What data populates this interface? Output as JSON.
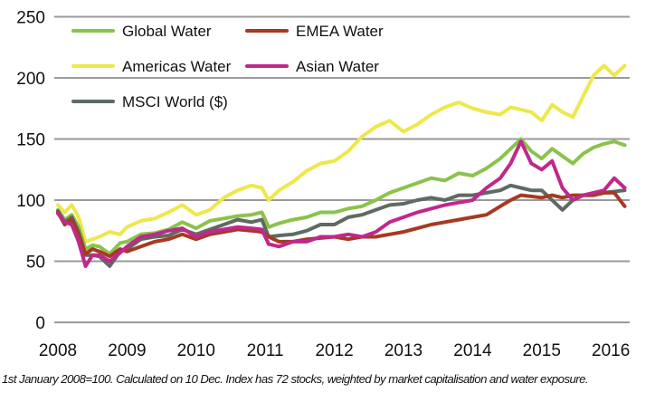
{
  "chart_data": {
    "type": "line",
    "title": "",
    "xlabel": "",
    "ylabel": "",
    "ylim": [
      0,
      250
    ],
    "xlim": [
      2008,
      2016.25
    ],
    "yticks": [
      0,
      50,
      100,
      150,
      200,
      250
    ],
    "xticks": [
      "2008",
      "2009",
      "2010",
      "2011",
      "2012",
      "2013",
      "2014",
      "2015",
      "2016"
    ],
    "grid": true,
    "legend_position": "top-left, inside plot",
    "x": [
      2008.0,
      2008.1,
      2008.2,
      2008.3,
      2008.4,
      2008.5,
      2008.6,
      2008.75,
      2008.9,
      2009.0,
      2009.2,
      2009.4,
      2009.6,
      2009.8,
      2010.0,
      2010.2,
      2010.4,
      2010.6,
      2010.8,
      2010.95,
      2011.05,
      2011.2,
      2011.4,
      2011.6,
      2011.8,
      2012.0,
      2012.2,
      2012.4,
      2012.6,
      2012.8,
      2013.0,
      2013.2,
      2013.4,
      2013.6,
      2013.8,
      2014.0,
      2014.2,
      2014.4,
      2014.55,
      2014.7,
      2014.85,
      2015.0,
      2015.15,
      2015.3,
      2015.45,
      2015.6,
      2015.75,
      2015.9,
      2016.05,
      2016.2
    ],
    "series": [
      {
        "name": "Global Water",
        "color": "#8BC34A",
        "values": [
          92,
          84,
          88,
          78,
          60,
          63,
          62,
          56,
          65,
          66,
          72,
          73,
          76,
          82,
          77,
          83,
          85,
          87,
          88,
          90,
          78,
          81,
          84,
          86,
          90,
          90,
          93,
          95,
          100,
          106,
          110,
          114,
          118,
          116,
          122,
          120,
          126,
          134,
          142,
          150,
          140,
          134,
          142,
          136,
          130,
          138,
          143,
          146,
          148,
          145
        ]
      },
      {
        "name": "Americas Water",
        "color": "#EDE84B",
        "values": [
          96,
          90,
          96,
          86,
          66,
          68,
          70,
          74,
          72,
          78,
          83,
          85,
          90,
          96,
          88,
          92,
          102,
          108,
          112,
          110,
          100,
          108,
          115,
          124,
          130,
          132,
          140,
          152,
          160,
          165,
          156,
          162,
          170,
          176,
          180,
          175,
          172,
          170,
          176,
          174,
          172,
          165,
          178,
          172,
          168,
          185,
          202,
          210,
          202,
          210
        ]
      },
      {
        "name": "MSCI World ($)",
        "color": "#5E6A62",
        "values": [
          91,
          82,
          86,
          74,
          55,
          55,
          54,
          46,
          58,
          60,
          68,
          70,
          71,
          76,
          72,
          76,
          80,
          84,
          82,
          84,
          70,
          71,
          72,
          75,
          80,
          80,
          86,
          88,
          92,
          96,
          97,
          100,
          102,
          100,
          104,
          104,
          106,
          108,
          112,
          110,
          108,
          108,
          100,
          92,
          100,
          104,
          104,
          106,
          107,
          108
        ]
      },
      {
        "name": "EMEA Water",
        "color": "#A63A22",
        "values": [
          90,
          80,
          84,
          72,
          56,
          60,
          58,
          54,
          60,
          58,
          62,
          66,
          68,
          72,
          68,
          72,
          74,
          76,
          75,
          74,
          70,
          66,
          66,
          68,
          69,
          70,
          68,
          70,
          70,
          72,
          74,
          77,
          80,
          82,
          84,
          86,
          88,
          95,
          100,
          104,
          103,
          102,
          104,
          102,
          104,
          104,
          104,
          106,
          106,
          95
        ]
      },
      {
        "name": "Asian Water",
        "color": "#C0288C",
        "values": [
          89,
          82,
          80,
          66,
          46,
          55,
          55,
          50,
          57,
          62,
          70,
          72,
          75,
          77,
          70,
          74,
          76,
          78,
          77,
          76,
          64,
          62,
          66,
          66,
          70,
          70,
          72,
          70,
          74,
          82,
          86,
          90,
          93,
          96,
          98,
          100,
          110,
          118,
          130,
          148,
          130,
          125,
          132,
          110,
          100,
          104,
          106,
          108,
          118,
          110
        ]
      }
    ]
  },
  "legend": {
    "items": [
      {
        "label": "Global Water",
        "color": "#8BC34A"
      },
      {
        "label": "EMEA Water",
        "color": "#A63A22"
      },
      {
        "label": "Americas Water",
        "color": "#EDE84B"
      },
      {
        "label": "Asian Water",
        "color": "#C0288C"
      },
      {
        "label": "MSCI World ($)",
        "color": "#5E6A62"
      }
    ]
  },
  "axes": {
    "y_ticks": [
      "250",
      "200",
      "150",
      "100",
      "50",
      "0"
    ],
    "x_ticks": [
      "2008",
      "2009",
      "2010",
      "2011",
      "2012",
      "2013",
      "2014",
      "2015",
      "2016"
    ]
  },
  "footnote": "1st January 2008=100. Calculated on 10 Dec. Index has 72 stocks, weighted by market capitalisation and water exposure."
}
